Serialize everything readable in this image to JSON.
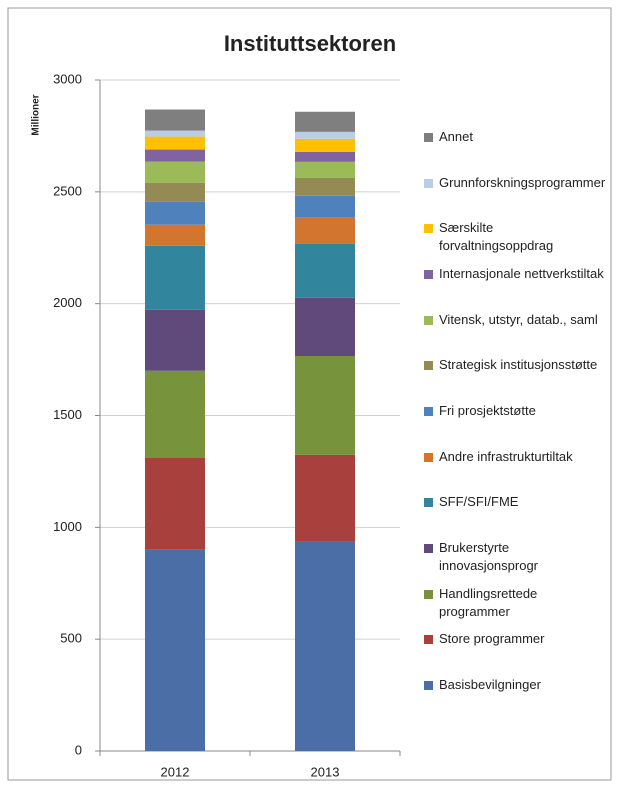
{
  "chart_data": {
    "type": "stacked_bar",
    "title": "Instituttsektoren",
    "y_label": "Millioner",
    "categories": [
      "2012",
      "2013"
    ],
    "series": [
      {
        "name": "Basisbevilgninger",
        "color": "#4a6ea5",
        "values": [
          900,
          935
        ]
      },
      {
        "name": "Store programmer",
        "color": "#a8403e",
        "values": [
          410,
          389
        ]
      },
      {
        "name": "Handlingsrettede programmer",
        "color": "#77933c",
        "values": [
          390,
          442
        ]
      },
      {
        "name": "Brukerstyrte innovasjonsprogr",
        "color": "#604a7b",
        "values": [
          273,
          260
        ]
      },
      {
        "name": "SFF/SFI/FME",
        "color": "#31859c",
        "values": [
          286,
          241
        ]
      },
      {
        "name": "Andre infrastrukturtiltak",
        "color": "#d2752f",
        "values": [
          94,
          117
        ]
      },
      {
        "name": "Fri prosjektstøtte",
        "color": "#4f81bd",
        "values": [
          103,
          98
        ]
      },
      {
        "name": "Strategisk institusjonsstøtte",
        "color": "#948a54",
        "values": [
          85,
          80
        ]
      },
      {
        "name": "Vitensk, utstyr, datab., saml",
        "color": "#9bbb59",
        "values": [
          94,
          72
        ]
      },
      {
        "name": "Internasjonale nettverkstiltak",
        "color": "#8064a2",
        "values": [
          54,
          45
        ]
      },
      {
        "name": "Særskilte forvaltningsoppdrag",
        "color": "#ffc000",
        "values": [
          58,
          58
        ]
      },
      {
        "name": "Grunnforskningsprogrammer",
        "color": "#b9cde5",
        "values": [
          27,
          31
        ]
      },
      {
        "name": "Annet",
        "color": "#7f7f7f",
        "values": [
          94,
          90
        ]
      }
    ],
    "ylim": [
      0,
      3000
    ],
    "yticks": [
      0,
      500,
      1000,
      1500,
      2000,
      2500,
      3000
    ],
    "grid": true,
    "legend": "right"
  }
}
